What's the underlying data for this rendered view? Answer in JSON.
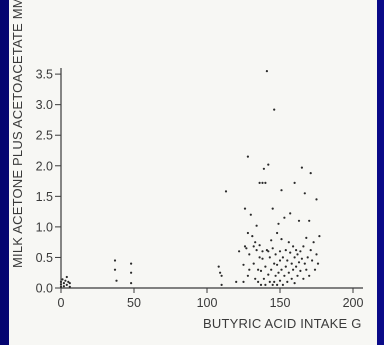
{
  "chart_data": {
    "type": "scatter",
    "title": "",
    "xlabel": "BUTYRIC ACID INTAKE  G",
    "ylabel": "MILK ACETONE PLUS ACETOACETATE MMOL/L",
    "xlim": [
      0,
      200
    ],
    "ylim": [
      0,
      3.6
    ],
    "x_ticks": [
      {
        "v": 0,
        "label": "0"
      },
      {
        "v": 50,
        "label": "50"
      },
      {
        "v": 100,
        "label": "100"
      },
      {
        "v": 150,
        "label": "150"
      },
      {
        "v": 200,
        "label": "200"
      }
    ],
    "y_ticks": [
      {
        "v": 0,
        "label": "0.0"
      },
      {
        "v": 0.5,
        "label": "0.5"
      },
      {
        "v": 1.0,
        "label": "1.0"
      },
      {
        "v": 1.5,
        "label": "1.5"
      },
      {
        "v": 2.0,
        "label": "2.0"
      },
      {
        "v": 2.5,
        "label": "2.5"
      },
      {
        "v": 3.0,
        "label": "3.0"
      },
      {
        "v": 3.5,
        "label": "3.5"
      }
    ],
    "grid": false,
    "points": [
      [
        0,
        0.02
      ],
      [
        0,
        0.06
      ],
      [
        0,
        0.1
      ],
      [
        1,
        0.14
      ],
      [
        2,
        0.03
      ],
      [
        2,
        0.08
      ],
      [
        3,
        0.12
      ],
      [
        4,
        0.18
      ],
      [
        4,
        0.05
      ],
      [
        5,
        0.1
      ],
      [
        6,
        0.02
      ],
      [
        6,
        0.08
      ],
      [
        37,
        0.45
      ],
      [
        37,
        0.3
      ],
      [
        38,
        0.12
      ],
      [
        48,
        0.4
      ],
      [
        48,
        0.25
      ],
      [
        48,
        0.08
      ],
      [
        108,
        0.35
      ],
      [
        109,
        0.25
      ],
      [
        110,
        0.2
      ],
      [
        110,
        0.05
      ],
      [
        113,
        1.58
      ],
      [
        120,
        0.1
      ],
      [
        122,
        0.6
      ],
      [
        125,
        0.38
      ],
      [
        125,
        0.1
      ],
      [
        126,
        0.68
      ],
      [
        126,
        1.3
      ],
      [
        127,
        0.65
      ],
      [
        128,
        0.2
      ],
      [
        128,
        2.15
      ],
      [
        128,
        0.9
      ],
      [
        129,
        0.3
      ],
      [
        129,
        0.55
      ],
      [
        130,
        1.2
      ],
      [
        131,
        0.85
      ],
      [
        132,
        0.4
      ],
      [
        132,
        0.68
      ],
      [
        133,
        0.75
      ],
      [
        133,
        0.15
      ],
      [
        134,
        0.62
      ],
      [
        134,
        1.02
      ],
      [
        135,
        0.1
      ],
      [
        135,
        0.3
      ],
      [
        136,
        0.5
      ],
      [
        136,
        1.72
      ],
      [
        136,
        0.7
      ],
      [
        137,
        0.05
      ],
      [
        137,
        0.28
      ],
      [
        138,
        1.72
      ],
      [
        138,
        0.48
      ],
      [
        138,
        0.6
      ],
      [
        139,
        0.15
      ],
      [
        139,
        1.95
      ],
      [
        140,
        1.72
      ],
      [
        140,
        0.05
      ],
      [
        140,
        0.35
      ],
      [
        141,
        0.62
      ],
      [
        141,
        3.55
      ],
      [
        142,
        0.22
      ],
      [
        142,
        0.6
      ],
      [
        142,
        2.02
      ],
      [
        143,
        0.5
      ],
      [
        143,
        0.1
      ],
      [
        144,
        0.78
      ],
      [
        144,
        0.3
      ],
      [
        145,
        0.05
      ],
      [
        145,
        1.3
      ],
      [
        145,
        0.65
      ],
      [
        146,
        0.4
      ],
      [
        146,
        2.92
      ],
      [
        146,
        0.1
      ],
      [
        147,
        0.2
      ],
      [
        147,
        0.55
      ],
      [
        148,
        0.9
      ],
      [
        148,
        0.05
      ],
      [
        148,
        0.38
      ],
      [
        149,
        0.25
      ],
      [
        149,
        1.05
      ],
      [
        150,
        0.6
      ],
      [
        150,
        0.12
      ],
      [
        150,
        0.45
      ],
      [
        151,
        0.8
      ],
      [
        151,
        0.3
      ],
      [
        151,
        1.6
      ],
      [
        152,
        0.05
      ],
      [
        152,
        0.5
      ],
      [
        153,
        0.2
      ],
      [
        153,
        1.15
      ],
      [
        154,
        0.35
      ],
      [
        154,
        0.62
      ],
      [
        155,
        0.1
      ],
      [
        155,
        0.45
      ],
      [
        156,
        0.75
      ],
      [
        156,
        0.25
      ],
      [
        157,
        0.58
      ],
      [
        157,
        1.22
      ],
      [
        158,
        0.4
      ],
      [
        158,
        0.15
      ],
      [
        159,
        0.68
      ],
      [
        159,
        0.3
      ],
      [
        160,
        0.5
      ],
      [
        160,
        1.72
      ],
      [
        160,
        0.08
      ],
      [
        161,
        0.35
      ],
      [
        161,
        0.62
      ],
      [
        162,
        0.2
      ],
      [
        162,
        0.55
      ],
      [
        163,
        0.42
      ],
      [
        163,
        1.1
      ],
      [
        164,
        0.6
      ],
      [
        164,
        0.28
      ],
      [
        165,
        0.48
      ],
      [
        165,
        1.97
      ],
      [
        166,
        0.15
      ],
      [
        166,
        0.68
      ],
      [
        167,
        1.55
      ],
      [
        167,
        0.4
      ],
      [
        168,
        0.3
      ],
      [
        168,
        0.82
      ],
      [
        169,
        0.5
      ],
      [
        170,
        1.1
      ],
      [
        170,
        0.2
      ],
      [
        171,
        0.62
      ],
      [
        171,
        1.88
      ],
      [
        172,
        0.45
      ],
      [
        173,
        0.75
      ],
      [
        174,
        0.3
      ],
      [
        175,
        1.45
      ],
      [
        175,
        0.55
      ],
      [
        176,
        0.4
      ],
      [
        177,
        0.85
      ]
    ]
  }
}
